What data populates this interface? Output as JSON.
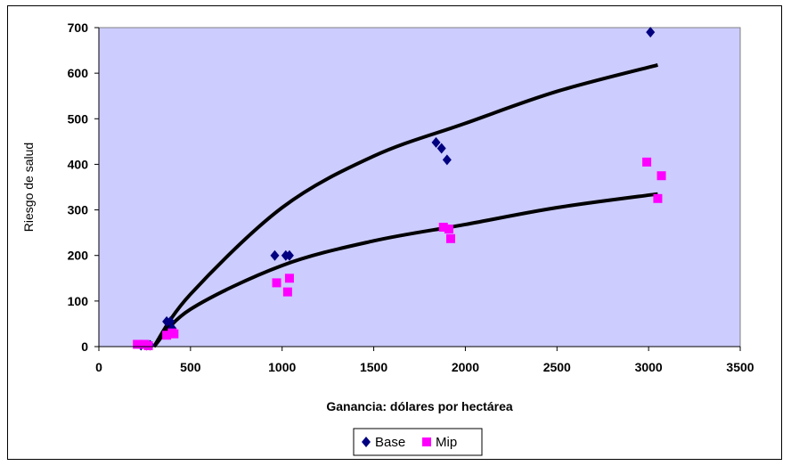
{
  "chart_data": {
    "type": "scatter",
    "title": "",
    "xlabel": "Ganancia: dólares por hectárea",
    "ylabel": "Riesgo de salud",
    "xlim": [
      0,
      3500
    ],
    "ylim": [
      0,
      700
    ],
    "x_ticks": [
      0,
      500,
      1000,
      1500,
      2000,
      2500,
      3000,
      3500
    ],
    "y_ticks": [
      0,
      100,
      200,
      300,
      400,
      500,
      600,
      700
    ],
    "plot_background": "#ccccff",
    "grid": false,
    "legend_position": "bottom",
    "series": [
      {
        "name": "Base",
        "marker": "diamond",
        "color": "#000080",
        "points": [
          [
            230,
            3
          ],
          [
            260,
            3
          ],
          [
            280,
            3
          ],
          [
            370,
            55
          ],
          [
            390,
            55
          ],
          [
            400,
            40
          ],
          [
            960,
            200
          ],
          [
            1020,
            200
          ],
          [
            1040,
            200
          ],
          [
            1840,
            448
          ],
          [
            1870,
            435
          ],
          [
            1900,
            410
          ],
          [
            3010,
            690
          ]
        ],
        "trend": {
          "type": "curve",
          "color": "#000000",
          "points": [
            [
              300,
              0
            ],
            [
              500,
              115
            ],
            [
              1000,
              305
            ],
            [
              1500,
              418
            ],
            [
              2000,
              490
            ],
            [
              2500,
              560
            ],
            [
              3050,
              618
            ]
          ]
        }
      },
      {
        "name": "Mip",
        "marker": "square",
        "color": "#ff00ff",
        "points": [
          [
            210,
            5
          ],
          [
            250,
            5
          ],
          [
            270,
            2
          ],
          [
            370,
            25
          ],
          [
            400,
            30
          ],
          [
            410,
            28
          ],
          [
            970,
            140
          ],
          [
            1030,
            120
          ],
          [
            1040,
            150
          ],
          [
            1880,
            262
          ],
          [
            1910,
            258
          ],
          [
            1920,
            237
          ],
          [
            2990,
            405
          ],
          [
            3050,
            325
          ],
          [
            3070,
            375
          ]
        ],
        "trend": {
          "type": "curve",
          "color": "#000000",
          "points": [
            [
              300,
              0
            ],
            [
              500,
              82
            ],
            [
              1000,
              178
            ],
            [
              1500,
              232
            ],
            [
              2000,
              268
            ],
            [
              2500,
              305
            ],
            [
              3050,
              335
            ]
          ]
        }
      }
    ]
  }
}
